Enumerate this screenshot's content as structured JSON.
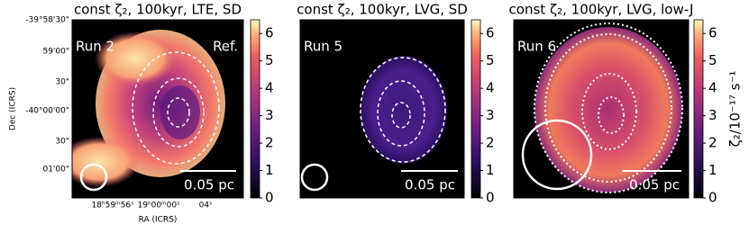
{
  "panels": [
    {
      "title": "const ζ₂, 100kyr, LTE, SD",
      "run": "Run 2",
      "note": "Ref.",
      "scale_bar": "0.05 pc"
    },
    {
      "title": "const ζ₂, 100kyr, LVG, SD",
      "run": "Run 5",
      "scale_bar": "0.05 pc"
    },
    {
      "title": "const ζ₂, 100kyr, LVG, low-J",
      "run": "Run 6",
      "scale_bar": "0.05 pc"
    }
  ],
  "axes": {
    "ylabel": "Dec (ICRS)",
    "xlabel": "RA (ICRS)",
    "yticks": [
      "-39°58'30\"",
      "59'00\"",
      "30\"",
      "-40°00'00\"",
      "30\"",
      "01'00\""
    ],
    "xticks": [
      "18ʰ59ᵐ56ˢ",
      "19ʰ00ᵐ00ˢ",
      "04ˢ"
    ]
  },
  "colorbar": {
    "label": "ζ₂/10⁻¹⁷ s⁻¹",
    "lim": [
      0,
      6.5
    ],
    "ticks": [
      0,
      1,
      2,
      3,
      4,
      5,
      6
    ]
  }
}
